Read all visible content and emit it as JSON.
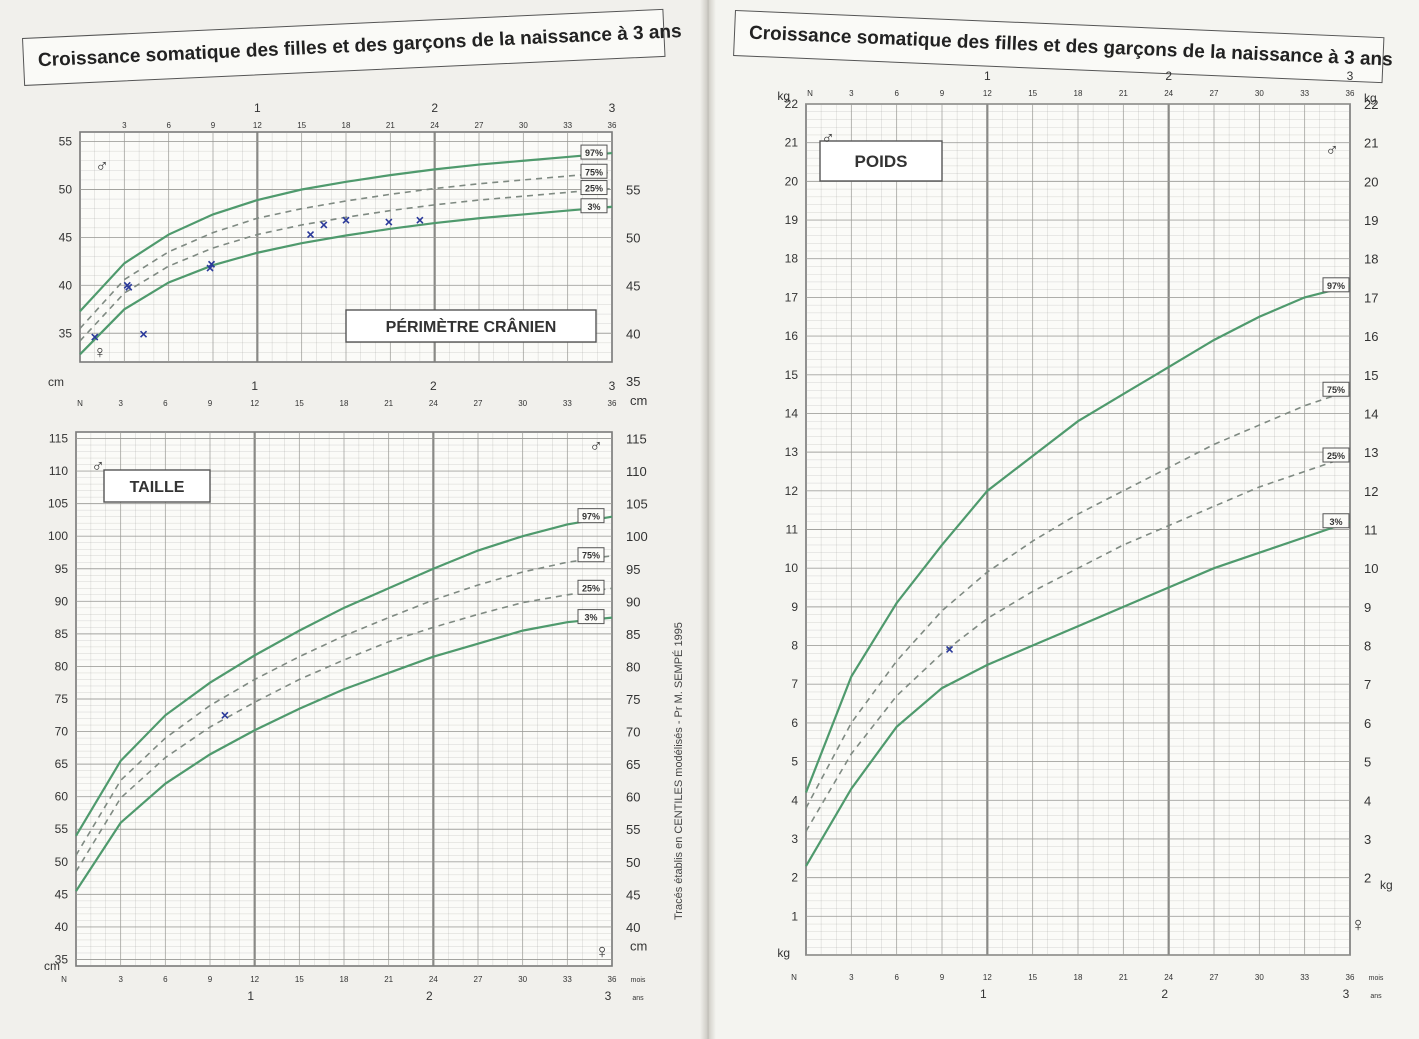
{
  "page_title": "Croissance somatique des filles et des garçons de la naissance à 3 ans",
  "side_note": "Tracés établis en CENTILES modélisés - Pr M. SEMPÉ 1995",
  "colors": {
    "curve": "#4f9a6d",
    "grid": "#9a9a96",
    "ink": "#2b3a9a",
    "text": "#333333"
  },
  "axis": {
    "month_ticks": [
      "3",
      "6",
      "9",
      "12",
      "15",
      "18",
      "21",
      "24",
      "27",
      "30",
      "33",
      "36"
    ],
    "year_ticks": [
      "1",
      "2",
      "3"
    ],
    "start_label": "N",
    "months_unit": "mois",
    "years_unit": "ans"
  },
  "symbols": {
    "male": "♂",
    "female": "♀"
  },
  "chart_data": [
    {
      "type": "line",
      "title": "PÉRIMÈTRE CRÂNIEN",
      "unit": "cm",
      "x": [
        0,
        3,
        6,
        9,
        12,
        15,
        18,
        21,
        24,
        27,
        30,
        33,
        36
      ],
      "xlim": [
        0,
        36
      ],
      "ylim_left": [
        32,
        56
      ],
      "ylim_right": [
        32,
        56
      ],
      "left_ticks": [
        35,
        40,
        45,
        50,
        55
      ],
      "right_ticks": [
        35,
        40,
        45,
        50,
        55
      ],
      "right_label_offset": 5,
      "series": [
        {
          "name": "97%",
          "dashed": false,
          "values": [
            37.3,
            42.3,
            45.3,
            47.4,
            48.9,
            50.0,
            50.8,
            51.5,
            52.1,
            52.6,
            53.0,
            53.4,
            53.8
          ]
        },
        {
          "name": "75%",
          "dashed": true,
          "values": [
            35.5,
            40.6,
            43.5,
            45.5,
            47.0,
            48.0,
            48.8,
            49.5,
            50.1,
            50.6,
            51.0,
            51.4,
            51.8
          ]
        },
        {
          "name": "25%",
          "dashed": true,
          "values": [
            34.2,
            39.2,
            42.0,
            43.9,
            45.3,
            46.3,
            47.1,
            47.8,
            48.4,
            48.9,
            49.3,
            49.7,
            50.1
          ]
        },
        {
          "name": "3%",
          "dashed": false,
          "values": [
            32.8,
            37.5,
            40.3,
            42.1,
            43.4,
            44.4,
            45.2,
            45.9,
            46.5,
            47.0,
            47.4,
            47.8,
            48.2
          ]
        }
      ],
      "plotted_points": [
        {
          "x": 1.0,
          "y": 34.6
        },
        {
          "x": 3.2,
          "y": 40.0
        },
        {
          "x": 3.3,
          "y": 39.8
        },
        {
          "x": 4.3,
          "y": 34.9
        },
        {
          "x": 8.8,
          "y": 41.8
        },
        {
          "x": 8.9,
          "y": 42.2
        },
        {
          "x": 15.6,
          "y": 45.3
        },
        {
          "x": 16.5,
          "y": 46.3
        },
        {
          "x": 18.0,
          "y": 46.8
        },
        {
          "x": 20.9,
          "y": 46.6
        },
        {
          "x": 23.0,
          "y": 46.8
        }
      ]
    },
    {
      "type": "line",
      "title": "TAILLE",
      "unit": "cm",
      "x": [
        0,
        3,
        6,
        9,
        12,
        15,
        18,
        21,
        24,
        27,
        30,
        33,
        36
      ],
      "xlim": [
        0,
        36
      ],
      "ylim_left": [
        34,
        116
      ],
      "ylim_right": [
        34,
        116
      ],
      "left_ticks": [
        35,
        40,
        45,
        50,
        55,
        60,
        65,
        70,
        75,
        80,
        85,
        90,
        95,
        100,
        105,
        110,
        115
      ],
      "right_ticks": [
        40,
        45,
        50,
        55,
        60,
        65,
        70,
        75,
        80,
        85,
        90,
        95,
        100,
        105,
        110,
        115
      ],
      "right_label_offset": 0,
      "series": [
        {
          "name": "97%",
          "dashed": false,
          "values": [
            54.0,
            65.5,
            72.5,
            77.5,
            81.7,
            85.5,
            89.0,
            92.0,
            95.0,
            97.8,
            100.0,
            101.8,
            103.0
          ]
        },
        {
          "name": "75%",
          "dashed": true,
          "values": [
            51.0,
            62.5,
            69.0,
            74.0,
            78.0,
            81.5,
            84.7,
            87.5,
            90.2,
            92.5,
            94.5,
            96.0,
            97.0
          ]
        },
        {
          "name": "25%",
          "dashed": true,
          "values": [
            48.5,
            59.8,
            66.0,
            70.7,
            74.5,
            78.0,
            81.0,
            83.8,
            86.0,
            88.0,
            89.8,
            91.0,
            92.0
          ]
        },
        {
          "name": "3%",
          "dashed": false,
          "values": [
            45.5,
            56.0,
            62.0,
            66.5,
            70.2,
            73.5,
            76.5,
            79.0,
            81.5,
            83.5,
            85.5,
            86.8,
            87.5
          ]
        }
      ],
      "plotted_points": [
        {
          "x": 10.0,
          "y": 72.5
        }
      ]
    },
    {
      "type": "line",
      "title": "POIDS",
      "unit": "kg",
      "x": [
        0,
        3,
        6,
        9,
        12,
        15,
        18,
        21,
        24,
        27,
        30,
        33,
        36
      ],
      "xlim": [
        0,
        36
      ],
      "ylim_left": [
        0,
        22
      ],
      "ylim_right": [
        0,
        22
      ],
      "left_ticks": [
        1,
        2,
        3,
        4,
        5,
        6,
        7,
        8,
        9,
        10,
        11,
        12,
        13,
        14,
        15,
        16,
        17,
        18,
        19,
        20,
        21,
        22
      ],
      "right_ticks": [
        2,
        3,
        4,
        5,
        6,
        7,
        8,
        9,
        10,
        11,
        12,
        13,
        14,
        15,
        16,
        17,
        18,
        19,
        20,
        21,
        22
      ],
      "right_label_offset": 0,
      "series": [
        {
          "name": "97%",
          "dashed": false,
          "values": [
            4.2,
            7.2,
            9.1,
            10.6,
            12.0,
            12.9,
            13.8,
            14.5,
            15.2,
            15.9,
            16.5,
            17.0,
            17.3
          ]
        },
        {
          "name": "75%",
          "dashed": true,
          "values": [
            3.8,
            6.0,
            7.6,
            8.9,
            9.9,
            10.7,
            11.4,
            12.0,
            12.6,
            13.2,
            13.7,
            14.2,
            14.6
          ]
        },
        {
          "name": "25%",
          "dashed": true,
          "values": [
            3.2,
            5.2,
            6.7,
            7.8,
            8.7,
            9.4,
            10.0,
            10.6,
            11.1,
            11.6,
            12.1,
            12.5,
            12.9
          ]
        },
        {
          "name": "3%",
          "dashed": false,
          "values": [
            2.3,
            4.3,
            5.9,
            6.9,
            7.5,
            8.0,
            8.5,
            9.0,
            9.5,
            10.0,
            10.4,
            10.8,
            11.2
          ]
        }
      ],
      "plotted_points": [
        {
          "x": 9.5,
          "y": 7.9
        }
      ]
    }
  ]
}
